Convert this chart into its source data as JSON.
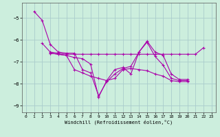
{
  "xlabel": "Windchill (Refroidissement éolien,°C)",
  "bg_color": "#cceedd",
  "grid_color": "#aacccc",
  "line_color": "#aa00aa",
  "xlim": [
    -0.5,
    23.5
  ],
  "ylim": [
    -9.3,
    -4.3
  ],
  "yticks": [
    -9,
    -8,
    -7,
    -6,
    -5
  ],
  "xticks": [
    0,
    1,
    2,
    3,
    4,
    5,
    6,
    7,
    8,
    9,
    10,
    11,
    12,
    13,
    14,
    15,
    16,
    17,
    18,
    19,
    20,
    21,
    22,
    23
  ],
  "series": [
    [
      null,
      -4.7,
      -5.1,
      -6.2,
      -6.55,
      -6.6,
      -6.6,
      -7.35,
      -7.5,
      -8.55,
      -7.9,
      -7.55,
      -7.3,
      -7.2,
      -6.55,
      -6.05,
      -6.55,
      -6.7,
      -7.55,
      -7.8,
      -7.8,
      null,
      null,
      null
    ],
    [
      null,
      null,
      -6.15,
      -6.55,
      -6.6,
      -6.65,
      -6.65,
      -6.65,
      -6.65,
      -6.65,
      -6.65,
      -6.65,
      -6.65,
      -6.65,
      -6.65,
      -6.65,
      -6.65,
      -6.65,
      -6.65,
      -6.65,
      -6.65,
      -6.65,
      -6.35,
      null
    ],
    [
      null,
      null,
      null,
      -6.6,
      -6.65,
      -6.7,
      -6.8,
      -6.85,
      -7.1,
      -8.6,
      -7.85,
      -7.35,
      -7.25,
      -7.55,
      -6.55,
      -6.1,
      -6.75,
      -7.15,
      -7.75,
      -7.85,
      -7.85,
      null,
      null,
      null
    ],
    [
      null,
      null,
      null,
      -6.6,
      -6.65,
      -6.7,
      -7.35,
      -7.5,
      -7.65,
      -7.75,
      -7.85,
      -7.75,
      -7.35,
      -7.3,
      -7.35,
      -7.4,
      -7.55,
      -7.65,
      -7.85,
      -7.9,
      -7.9,
      null,
      null,
      null
    ]
  ]
}
